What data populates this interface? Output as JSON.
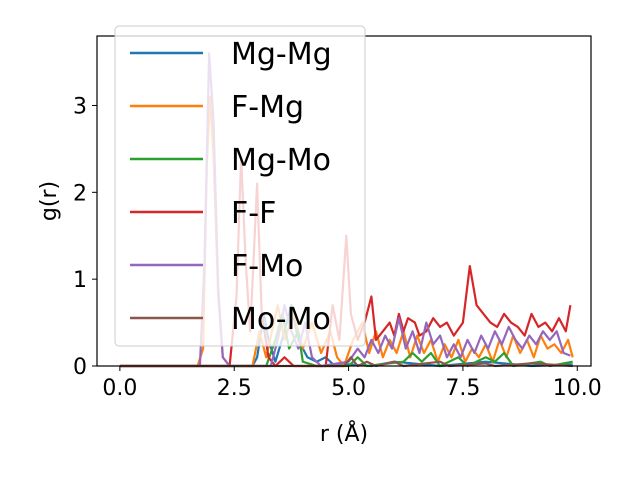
{
  "chart_data": {
    "type": "line",
    "xlabel": "r (Å)",
    "ylabel": "g(r)",
    "xlim": [
      -0.5,
      10.3
    ],
    "ylim": [
      0,
      3.8
    ],
    "xticks": [
      "0.0",
      "2.5",
      "5.0",
      "7.5",
      "10.0"
    ],
    "yticks": [
      "0",
      "1",
      "2",
      "3"
    ],
    "grid": false,
    "legend_position": "upper-left",
    "series": [
      {
        "name": "Mg-Mg",
        "color": "#1f77b4",
        "points": [
          [
            0.0,
            0
          ],
          [
            2.9,
            0
          ],
          [
            3.0,
            0.1
          ],
          [
            3.15,
            0.6
          ],
          [
            3.25,
            0.3
          ],
          [
            3.4,
            0.05
          ],
          [
            3.6,
            0.4
          ],
          [
            3.75,
            0.7
          ],
          [
            3.9,
            0.3
          ],
          [
            4.1,
            0.1
          ],
          [
            4.3,
            0.05
          ],
          [
            4.5,
            0.1
          ],
          [
            4.7,
            0.0
          ],
          [
            5.0,
            0.02
          ],
          [
            5.5,
            0.0
          ],
          [
            6.0,
            0.05
          ],
          [
            7.0,
            0.0
          ],
          [
            8.0,
            0.05
          ],
          [
            9.0,
            0.0
          ],
          [
            9.9,
            0.02
          ]
        ]
      },
      {
        "name": "F-Mg",
        "color": "#ff7f0e",
        "points": [
          [
            0.0,
            0
          ],
          [
            1.7,
            0
          ],
          [
            1.82,
            0.2
          ],
          [
            1.9,
            2.3
          ],
          [
            1.97,
            3.1
          ],
          [
            2.05,
            2.4
          ],
          [
            2.15,
            0.8
          ],
          [
            2.25,
            0.1
          ],
          [
            2.4,
            0.0
          ],
          [
            2.9,
            0.0
          ],
          [
            3.05,
            0.4
          ],
          [
            3.2,
            0.1
          ],
          [
            3.45,
            0.7
          ],
          [
            3.6,
            0.3
          ],
          [
            3.8,
            0.6
          ],
          [
            4.0,
            0.2
          ],
          [
            4.2,
            0.5
          ],
          [
            4.4,
            0.15
          ],
          [
            4.6,
            0.4
          ],
          [
            4.75,
            0.1
          ],
          [
            4.9,
            0.0
          ],
          [
            5.1,
            0.3
          ],
          [
            5.3,
            0.5
          ],
          [
            5.45,
            0.15
          ],
          [
            5.6,
            0.4
          ],
          [
            5.75,
            0.1
          ],
          [
            5.9,
            0.3
          ],
          [
            6.05,
            0.15
          ],
          [
            6.2,
            0.4
          ],
          [
            6.35,
            0.1
          ],
          [
            6.5,
            0.35
          ],
          [
            6.65,
            0.15
          ],
          [
            6.8,
            0.3
          ],
          [
            6.95,
            0.05
          ],
          [
            7.1,
            0.25
          ],
          [
            7.25,
            0.1
          ],
          [
            7.4,
            0.3
          ],
          [
            7.55,
            0.05
          ],
          [
            7.7,
            0.2
          ],
          [
            7.85,
            0.1
          ],
          [
            8.0,
            0.25
          ],
          [
            8.15,
            0.05
          ],
          [
            8.3,
            0.3
          ],
          [
            8.45,
            0.1
          ],
          [
            8.6,
            0.35
          ],
          [
            8.75,
            0.15
          ],
          [
            8.9,
            0.3
          ],
          [
            9.05,
            0.1
          ],
          [
            9.2,
            0.35
          ],
          [
            9.35,
            0.2
          ],
          [
            9.5,
            0.25
          ],
          [
            9.65,
            0.15
          ],
          [
            9.8,
            0.3
          ],
          [
            9.9,
            0.1
          ]
        ]
      },
      {
        "name": "Mg-Mo",
        "color": "#2ca02c",
        "points": [
          [
            0.0,
            0
          ],
          [
            3.2,
            0
          ],
          [
            3.4,
            0.3
          ],
          [
            3.55,
            0.6
          ],
          [
            3.7,
            0.2
          ],
          [
            3.9,
            0.4
          ],
          [
            4.0,
            0.05
          ],
          [
            4.3,
            0.0
          ],
          [
            5.0,
            0.0
          ],
          [
            5.2,
            0.1
          ],
          [
            5.4,
            0.0
          ],
          [
            6.2,
            0.05
          ],
          [
            6.4,
            0.15
          ],
          [
            6.6,
            0.05
          ],
          [
            6.8,
            0.15
          ],
          [
            7.0,
            0.0
          ],
          [
            7.4,
            0.1
          ],
          [
            7.6,
            0.0
          ],
          [
            8.0,
            0.1
          ],
          [
            8.2,
            0.05
          ],
          [
            8.4,
            0.15
          ],
          [
            8.6,
            0.0
          ],
          [
            9.2,
            0.05
          ],
          [
            9.4,
            0.0
          ],
          [
            9.9,
            0.05
          ]
        ]
      },
      {
        "name": "F-F",
        "color": "#d62728",
        "points": [
          [
            0.0,
            0
          ],
          [
            2.4,
            0
          ],
          [
            2.55,
            0.8
          ],
          [
            2.65,
            2.4
          ],
          [
            2.75,
            1.2
          ],
          [
            2.85,
            0.4
          ],
          [
            3.0,
            2.1
          ],
          [
            3.1,
            0.6
          ],
          [
            3.25,
            0.1
          ],
          [
            3.4,
            0.0
          ],
          [
            3.6,
            0.1
          ],
          [
            3.8,
            0.0
          ],
          [
            4.5,
            0.0
          ],
          [
            4.65,
            0.7
          ],
          [
            4.8,
            0.3
          ],
          [
            4.95,
            1.5
          ],
          [
            5.05,
            0.6
          ],
          [
            5.2,
            0.3
          ],
          [
            5.35,
            0.5
          ],
          [
            5.5,
            0.8
          ],
          [
            5.6,
            0.3
          ],
          [
            5.75,
            0.4
          ],
          [
            5.9,
            0.5
          ],
          [
            6.0,
            0.35
          ],
          [
            6.1,
            0.6
          ],
          [
            6.2,
            0.4
          ],
          [
            6.3,
            0.55
          ],
          [
            6.45,
            0.5
          ],
          [
            6.55,
            0.35
          ],
          [
            6.7,
            0.4
          ],
          [
            6.85,
            0.55
          ],
          [
            7.0,
            0.45
          ],
          [
            7.15,
            0.5
          ],
          [
            7.3,
            0.35
          ],
          [
            7.5,
            0.5
          ],
          [
            7.65,
            1.15
          ],
          [
            7.8,
            0.7
          ],
          [
            7.95,
            0.6
          ],
          [
            8.1,
            0.5
          ],
          [
            8.25,
            0.45
          ],
          [
            8.4,
            0.6
          ],
          [
            8.55,
            0.5
          ],
          [
            8.7,
            0.45
          ],
          [
            8.85,
            0.35
          ],
          [
            9.0,
            0.6
          ],
          [
            9.15,
            0.45
          ],
          [
            9.3,
            0.5
          ],
          [
            9.45,
            0.4
          ],
          [
            9.6,
            0.55
          ],
          [
            9.75,
            0.4
          ],
          [
            9.85,
            0.7
          ]
        ]
      },
      {
        "name": "F-Mo",
        "color": "#9467bd",
        "points": [
          [
            0.0,
            0
          ],
          [
            1.75,
            0
          ],
          [
            1.85,
            1.2
          ],
          [
            1.95,
            3.6
          ],
          [
            2.05,
            2.8
          ],
          [
            2.15,
            0.9
          ],
          [
            2.25,
            0.1
          ],
          [
            2.4,
            0.0
          ],
          [
            3.3,
            0.0
          ],
          [
            3.45,
            0.3
          ],
          [
            3.6,
            0.7
          ],
          [
            3.75,
            0.4
          ],
          [
            3.9,
            0.2
          ],
          [
            4.05,
            0.5
          ],
          [
            4.2,
            0.1
          ],
          [
            4.4,
            0.0
          ],
          [
            5.0,
            0.05
          ],
          [
            5.2,
            0.2
          ],
          [
            5.35,
            0.1
          ],
          [
            5.5,
            0.3
          ],
          [
            5.65,
            0.15
          ],
          [
            5.8,
            0.35
          ],
          [
            5.95,
            0.2
          ],
          [
            6.1,
            0.55
          ],
          [
            6.25,
            0.2
          ],
          [
            6.4,
            0.4
          ],
          [
            6.55,
            0.15
          ],
          [
            6.7,
            0.5
          ],
          [
            6.85,
            0.25
          ],
          [
            7.0,
            0.35
          ],
          [
            7.15,
            0.1
          ],
          [
            7.3,
            0.25
          ],
          [
            7.45,
            0.1
          ],
          [
            7.6,
            0.3
          ],
          [
            7.75,
            0.15
          ],
          [
            7.9,
            0.35
          ],
          [
            8.05,
            0.2
          ],
          [
            8.2,
            0.4
          ],
          [
            8.35,
            0.25
          ],
          [
            8.5,
            0.45
          ],
          [
            8.65,
            0.3
          ],
          [
            8.8,
            0.2
          ],
          [
            8.95,
            0.35
          ],
          [
            9.1,
            0.25
          ],
          [
            9.25,
            0.4
          ],
          [
            9.4,
            0.3
          ],
          [
            9.55,
            0.4
          ],
          [
            9.7,
            0.15
          ],
          [
            9.85,
            0.12
          ]
        ]
      },
      {
        "name": "Mo-Mo",
        "color": "#8c564b",
        "points": [
          [
            0.0,
            0
          ],
          [
            4.9,
            0
          ],
          [
            5.05,
            0.1
          ],
          [
            5.2,
            0.0
          ],
          [
            5.4,
            0.05
          ],
          [
            5.6,
            0.0
          ],
          [
            6.0,
            0.05
          ],
          [
            6.2,
            0.0
          ],
          [
            7.0,
            0.05
          ],
          [
            7.2,
            0.0
          ],
          [
            8.0,
            0.03
          ],
          [
            8.2,
            0.0
          ],
          [
            9.0,
            0.03
          ],
          [
            9.9,
            0.0
          ]
        ]
      }
    ]
  }
}
